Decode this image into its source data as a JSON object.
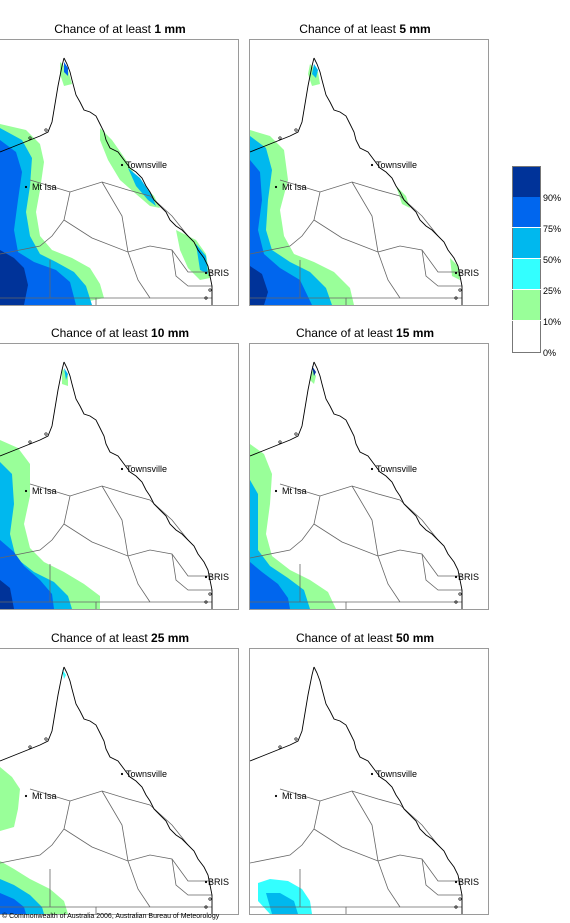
{
  "panels": [
    {
      "title_prefix": "Chance of at least ",
      "threshold": "1 mm"
    },
    {
      "title_prefix": "Chance of at least ",
      "threshold": "5 mm"
    },
    {
      "title_prefix": "Chance of at least ",
      "threshold": "10 mm"
    },
    {
      "title_prefix": "Chance of at least ",
      "threshold": "15 mm"
    },
    {
      "title_prefix": "Chance of at least ",
      "threshold": "25 mm"
    },
    {
      "title_prefix": "Chance of at least ",
      "threshold": "50 mm"
    }
  ],
  "places": {
    "townsville": "Townsville",
    "mt_isa": "Mt Isa",
    "brisbane": "BRIS"
  },
  "legend": {
    "labels": [
      "90%",
      "75%",
      "50%",
      "25%",
      "10%",
      "0%"
    ],
    "colors": [
      "#003399",
      "#0066ee",
      "#00b8ee",
      "#33ffff",
      "#99ff99",
      "#ffffff"
    ]
  },
  "colors": {
    "green": "#99ff99",
    "cyan": "#33ffff",
    "light_blue": "#00b8ee",
    "blue": "#0066ee",
    "dark_blue": "#003399",
    "coast": "#000000",
    "border": "#666666"
  },
  "copyright": "© Commonwealth of Australia 2006, Australian Bureau of Meteorology"
}
